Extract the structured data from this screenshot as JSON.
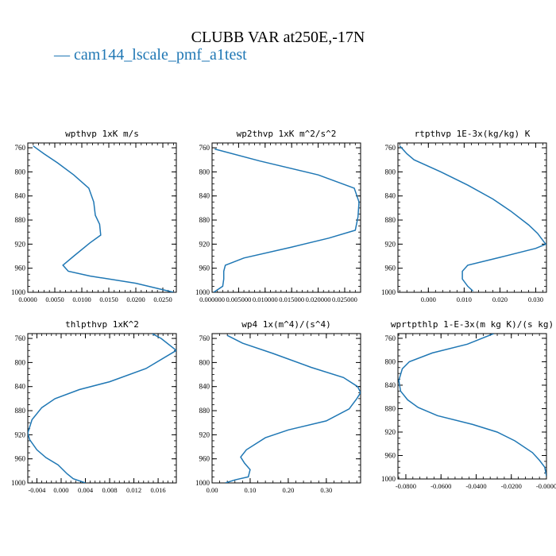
{
  "title": "CLUBB VAR at250E,-17N",
  "legend": {
    "dash": "—",
    "label": "cam144_lscale_pmf_a1test",
    "color": "#1f77b4"
  },
  "line_color": "#1f77b4",
  "chart_data": [
    {
      "type": "line",
      "title": "wpthvp  1xK m/s",
      "xlim": [
        0,
        0.0275
      ],
      "ylim": [
        1000,
        752
      ],
      "xticks": [
        0,
        0.005,
        0.01,
        0.015,
        0.02,
        0.025
      ],
      "xticklabels": [
        "0.0000",
        "0.0050",
        "0.0100",
        "0.0150",
        "0.0200",
        "0.0250"
      ],
      "yticks": [
        760,
        800,
        840,
        880,
        920,
        960,
        1000
      ],
      "yticklabels": [
        "760",
        "800",
        "840",
        "880",
        "920",
        "960",
        "1000"
      ],
      "series": [
        {
          "x": [
            0.001,
            0.003,
            0.0055,
            0.0085,
            0.0113,
            0.0122,
            0.0125,
            0.0133,
            0.0135,
            0.0115,
            0.0085,
            0.0065,
            0.0075,
            0.0115,
            0.02,
            0.027
          ],
          "y": [
            757,
            770,
            785,
            805,
            827,
            850,
            872,
            887,
            905,
            918,
            940,
            955,
            965,
            973,
            985,
            1000
          ]
        }
      ]
    },
    {
      "type": "line",
      "title": "wp2thvp  1xK m^2/s^2",
      "xlim": [
        0,
        0.028
      ],
      "ylim": [
        1000,
        752
      ],
      "xticks": [
        0,
        0.005,
        0.01,
        0.015,
        0.02,
        0.025
      ],
      "xticklabels": [
        "0.000000",
        "0.005000",
        "0.010000",
        "0.015000",
        "0.020000",
        "0.025000"
      ],
      "yticks": [
        760,
        800,
        840,
        880,
        920,
        960,
        1000
      ],
      "yticklabels": [
        "760",
        "800",
        "840",
        "880",
        "920",
        "960",
        "1000"
      ],
      "series": [
        {
          "x": [
            0.0005,
            0.009,
            0.02,
            0.0268,
            0.0277,
            0.0275,
            0.027,
            0.022,
            0.015,
            0.006,
            0.0025,
            0.0022,
            0.0022,
            0.002,
            0.0003
          ],
          "y": [
            762,
            782,
            805,
            827,
            850,
            875,
            897,
            910,
            925,
            943,
            955,
            965,
            978,
            990,
            1000
          ]
        }
      ]
    },
    {
      "type": "line",
      "title": "rtpthvp  1E-3x(kg/kg) K",
      "xlim": [
        -0.0085,
        0.033
      ],
      "ylim": [
        1000,
        752
      ],
      "xticks": [
        0,
        0.01,
        0.02,
        0.03
      ],
      "xticklabels": [
        "0.000",
        "0.010",
        "0.020",
        "0.030"
      ],
      "yticks": [
        760,
        800,
        840,
        880,
        920,
        960,
        1000
      ],
      "yticklabels": [
        "760",
        "800",
        "840",
        "880",
        "920",
        "960",
        "1000"
      ],
      "series": [
        {
          "x": [
            -0.008,
            -0.006,
            -0.004,
            0.0035,
            0.011,
            0.018,
            0.023,
            0.028,
            0.0305,
            0.0328,
            0.03,
            0.02,
            0.011,
            0.0095,
            0.0095,
            0.011,
            0.0125
          ],
          "y": [
            757,
            770,
            780,
            800,
            822,
            845,
            865,
            888,
            902,
            920,
            927,
            942,
            955,
            965,
            978,
            990,
            998
          ]
        }
      ]
    },
    {
      "type": "line",
      "title": "thlpthvp  1xK^2",
      "xlim": [
        -0.0055,
        0.019
      ],
      "ylim": [
        1000,
        752
      ],
      "xticks": [
        -0.004,
        0,
        0.004,
        0.008,
        0.012,
        0.016
      ],
      "xticklabels": [
        "-0.004",
        "0.000",
        "0.004",
        "0.008",
        "0.012",
        "0.016"
      ],
      "yticks": [
        760,
        800,
        840,
        880,
        920,
        960,
        1000
      ],
      "yticklabels": [
        "760",
        "800",
        "840",
        "880",
        "920",
        "960",
        "1000"
      ],
      "series": [
        {
          "x": [
            0.015,
            0.0165,
            0.019,
            0.014,
            0.008,
            0.003,
            -0.001,
            -0.0032,
            -0.0048,
            -0.0055,
            -0.0052,
            -0.004,
            -0.0025,
            -0.0005,
            0.001,
            0.002,
            0.004
          ],
          "y": [
            752,
            760,
            780,
            810,
            832,
            845,
            860,
            875,
            895,
            917,
            928,
            945,
            958,
            970,
            985,
            993,
            1000
          ]
        }
      ]
    },
    {
      "type": "line",
      "title": "wp4  1x(m^4)/(s^4)",
      "xlim": [
        0,
        0.39
      ],
      "ylim": [
        1000,
        752
      ],
      "xticks": [
        0,
        0.1,
        0.2,
        0.3
      ],
      "xticklabels": [
        "0.00",
        "0.10",
        "0.20",
        "0.30"
      ],
      "yticks": [
        760,
        800,
        840,
        880,
        920,
        960,
        1000
      ],
      "yticklabels": [
        "760",
        "800",
        "840",
        "880",
        "920",
        "960",
        "1000"
      ],
      "series": [
        {
          "x": [
            0.04,
            0.08,
            0.16,
            0.26,
            0.345,
            0.382,
            0.39,
            0.38,
            0.36,
            0.3,
            0.2,
            0.14,
            0.09,
            0.075,
            0.085,
            0.1,
            0.095,
            0.06,
            0.035
          ],
          "y": [
            755,
            768,
            785,
            808,
            825,
            840,
            850,
            860,
            877,
            897,
            912,
            925,
            945,
            957,
            967,
            978,
            990,
            995,
            1000
          ]
        }
      ]
    },
    {
      "type": "line",
      "title": "wprtpthlp  1-E-3x(m kg K)/(s kg)",
      "xlim": [
        -0.0845,
        0
      ],
      "ylim": [
        1000,
        752
      ],
      "xticks": [
        -0.08,
        -0.06,
        -0.04,
        -0.02,
        0
      ],
      "xticklabels": [
        "-0.0800",
        "-0.0600",
        "-0.0400",
        "-0.0200",
        "-0.0000"
      ],
      "yticks": [
        760,
        800,
        840,
        880,
        920,
        960,
        1000
      ],
      "yticklabels": [
        "760",
        "800",
        "840",
        "880",
        "920",
        "960",
        "1000"
      ],
      "series": [
        {
          "x": [
            -0.03,
            -0.045,
            -0.065,
            -0.078,
            -0.082,
            -0.084,
            -0.083,
            -0.079,
            -0.073,
            -0.062,
            -0.042,
            -0.028,
            -0.018,
            -0.008,
            -0.004,
            -0.001,
            0.0
          ],
          "y": [
            752,
            770,
            785,
            800,
            812,
            832,
            850,
            865,
            878,
            892,
            907,
            920,
            935,
            955,
            968,
            980,
            995
          ]
        }
      ]
    }
  ]
}
